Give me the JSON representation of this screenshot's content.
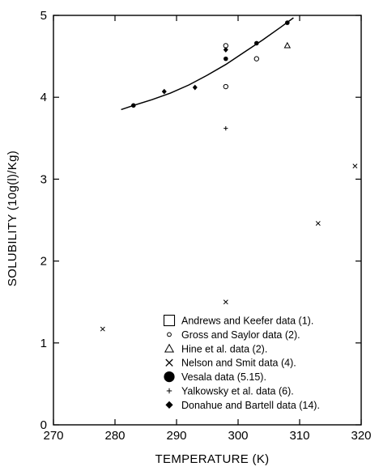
{
  "chart_data": {
    "type": "scatter",
    "title": "",
    "xlabel": "TEMPERATURE (K)",
    "ylabel": "SOLUBILITY (10g(l)/Kg)",
    "xlim": [
      270,
      320
    ],
    "ylim": [
      0,
      5
    ],
    "xticks": [
      270,
      280,
      290,
      300,
      310,
      320
    ],
    "yticks": [
      0,
      1,
      2,
      3,
      4,
      5
    ],
    "grid": false,
    "legend_position": "bottom-right",
    "series": [
      {
        "name": "Andrews and Keefer data (1).",
        "marker": "square",
        "values": []
      },
      {
        "name": "Gross and Saylor data (2).",
        "marker": "open-circle",
        "x": [
          298,
          298,
          303
        ],
        "y": [
          4.63,
          4.13,
          4.47
        ]
      },
      {
        "name": "Hine et al. data (2).",
        "marker": "open-triangle",
        "x": [
          308
        ],
        "y": [
          4.63
        ]
      },
      {
        "name": "Nelson and Smit data (4).",
        "marker": "cross",
        "x": [
          278,
          298,
          313,
          319
        ],
        "y": [
          1.17,
          1.5,
          2.46,
          3.16
        ]
      },
      {
        "name": "Vesala data (5.15).",
        "marker": "filled-circle",
        "x": [
          283,
          298,
          303,
          308
        ],
        "y": [
          3.9,
          4.47,
          4.66,
          4.91
        ]
      },
      {
        "name": "Yalkowsky et al. data (6).",
        "marker": "plus",
        "x": [
          298
        ],
        "y": [
          3.62
        ]
      },
      {
        "name": "Donahue and Bartell data (14).",
        "marker": "filled-diamond",
        "x": [
          288,
          293,
          298
        ],
        "y": [
          4.07,
          4.12,
          4.58
        ]
      }
    ],
    "fit_curve": {
      "x": [
        281,
        283,
        286,
        289,
        292,
        295,
        298,
        301,
        304,
        307,
        309
      ],
      "y": [
        3.85,
        3.9,
        3.97,
        4.05,
        4.15,
        4.27,
        4.4,
        4.55,
        4.7,
        4.86,
        4.97
      ]
    }
  }
}
